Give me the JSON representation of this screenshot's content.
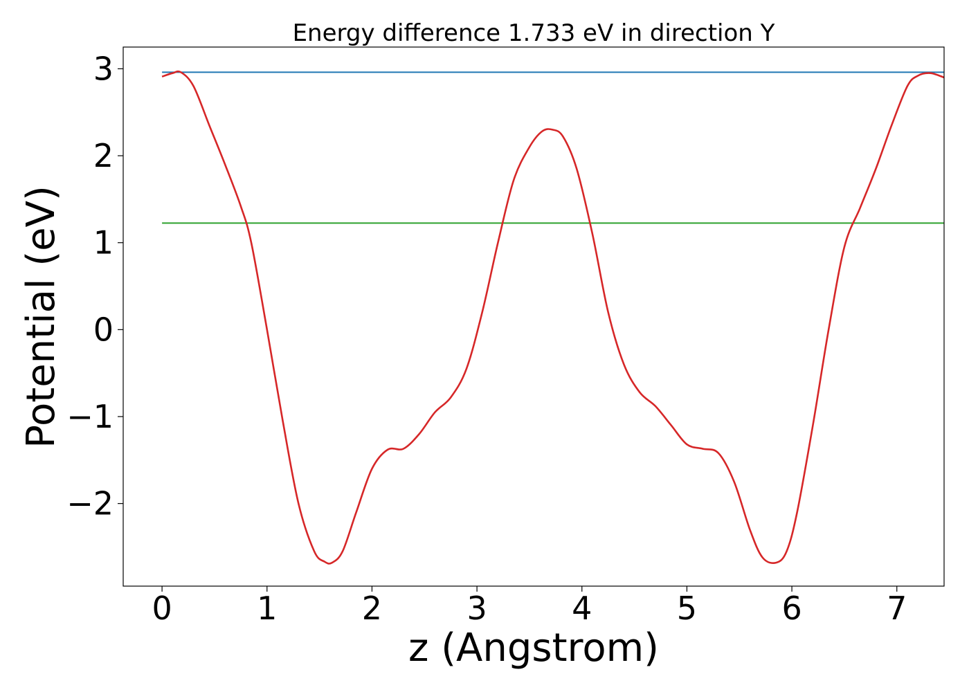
{
  "chart_data": {
    "type": "line",
    "title": "Energy difference 1.733 eV in direction Y",
    "xlabel": "z (Angstrom)",
    "ylabel": "Potential (eV)",
    "xlim": [
      -0.37,
      7.45
    ],
    "ylim": [
      -2.95,
      3.25
    ],
    "xticks": [
      0,
      1,
      2,
      3,
      4,
      5,
      6,
      7
    ],
    "yticks": [
      -2,
      -1,
      0,
      1,
      2,
      3
    ],
    "xtick_labels": [
      "0",
      "1",
      "2",
      "3",
      "4",
      "5",
      "6",
      "7"
    ],
    "ytick_labels": [
      "−2",
      "−1",
      "0",
      "1",
      "2",
      "3"
    ],
    "grid": false,
    "series": [
      {
        "color": "#d62728",
        "x": [
          0.0,
          0.1,
          0.18,
          0.3,
          0.45,
          0.6,
          0.75,
          0.85,
          1.0,
          1.15,
          1.3,
          1.45,
          1.55,
          1.62,
          1.72,
          1.85,
          2.0,
          2.15,
          2.3,
          2.45,
          2.6,
          2.75,
          2.9,
          3.05,
          3.2,
          3.35,
          3.5,
          3.62,
          3.72,
          3.82,
          3.95,
          4.1,
          4.25,
          4.4,
          4.55,
          4.7,
          4.85,
          5.0,
          5.15,
          5.3,
          5.45,
          5.6,
          5.72,
          5.85,
          5.95,
          6.05,
          6.2,
          6.35,
          6.5,
          6.65,
          6.8,
          6.95,
          7.1,
          7.2,
          7.32,
          7.45
        ],
        "y": [
          2.91,
          2.95,
          2.96,
          2.8,
          2.35,
          1.9,
          1.42,
          1.0,
          0.0,
          -1.05,
          -2.0,
          -2.55,
          -2.67,
          -2.68,
          -2.55,
          -2.1,
          -1.6,
          -1.38,
          -1.37,
          -1.2,
          -0.95,
          -0.78,
          -0.45,
          0.2,
          1.0,
          1.72,
          2.1,
          2.28,
          2.3,
          2.22,
          1.85,
          1.1,
          0.2,
          -0.4,
          -0.72,
          -0.88,
          -1.1,
          -1.32,
          -1.37,
          -1.42,
          -1.75,
          -2.3,
          -2.62,
          -2.68,
          -2.55,
          -2.1,
          -1.1,
          0.0,
          0.95,
          1.4,
          1.85,
          2.35,
          2.8,
          2.92,
          2.95,
          2.9
        ]
      },
      {
        "color": "#1f77b4",
        "x": [
          0.0,
          7.45
        ],
        "y": [
          2.96,
          2.96
        ]
      },
      {
        "color": "#2ca02c",
        "x": [
          0.0,
          7.45
        ],
        "y": [
          1.225,
          1.225
        ]
      }
    ]
  }
}
